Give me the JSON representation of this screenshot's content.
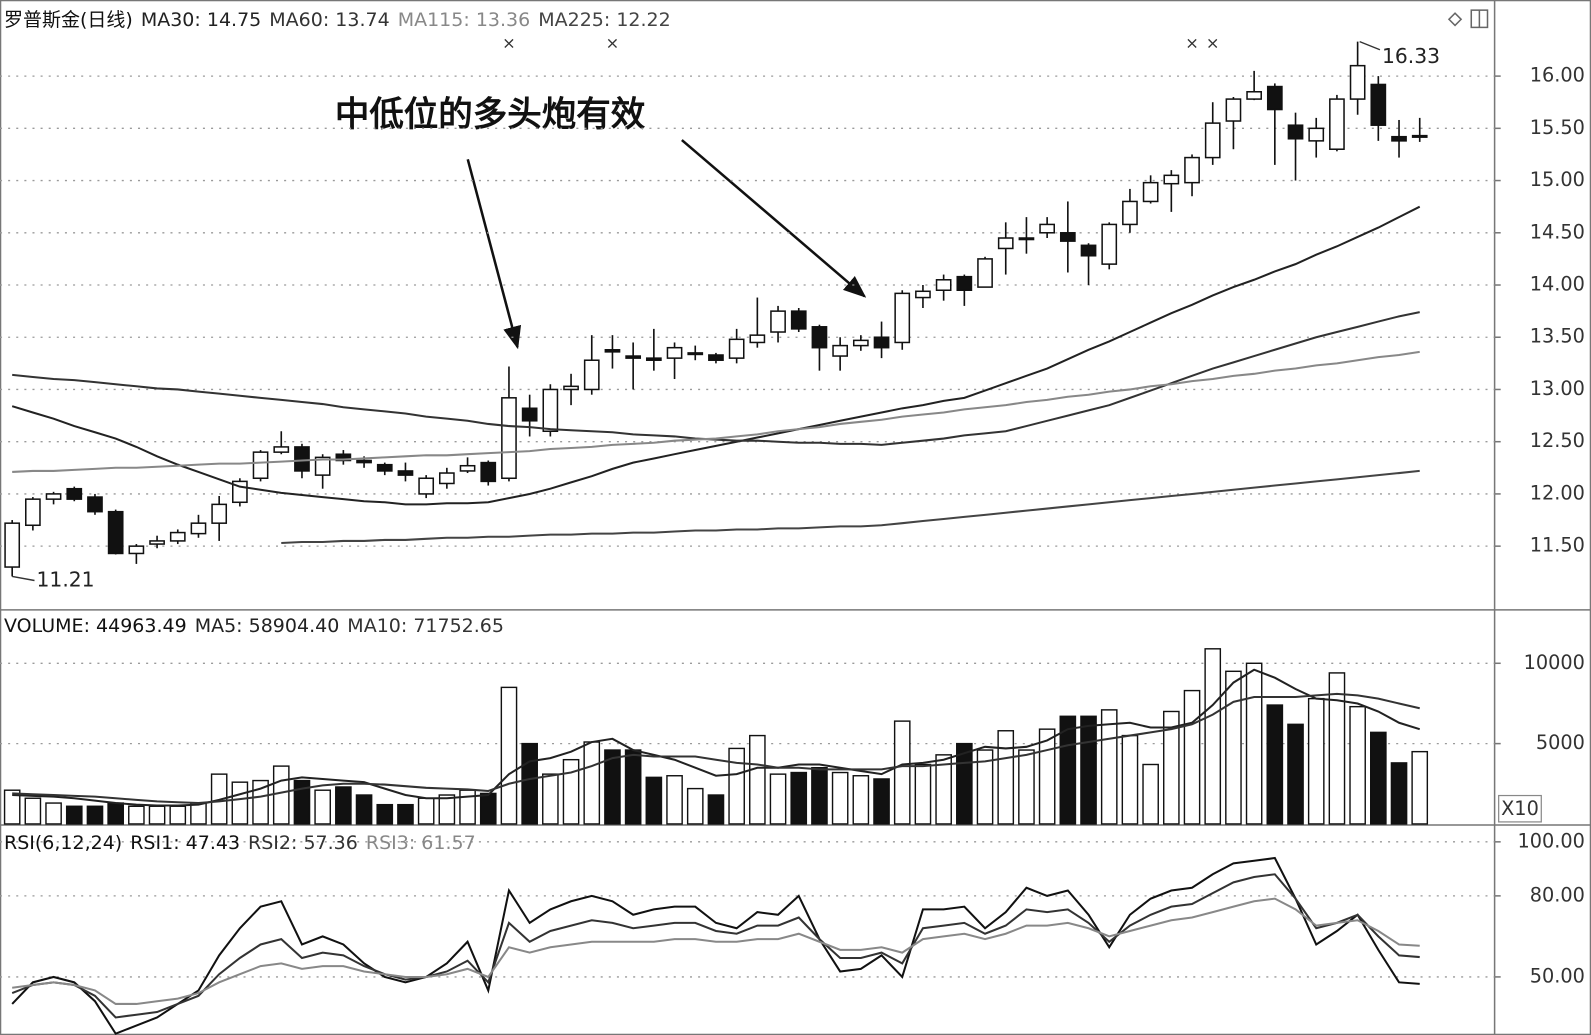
{
  "chart_data": [
    {
      "type": "candlestick",
      "title": "罗普斯金(日线)",
      "open": [
        11.3,
        11.7,
        11.95,
        12.05,
        11.97,
        11.83,
        11.43,
        11.52,
        11.55,
        11.62,
        11.72,
        11.92,
        12.15,
        12.4,
        12.45,
        12.18,
        12.38,
        12.32,
        12.28,
        12.22,
        12.0,
        12.1,
        12.22,
        12.3,
        12.15,
        12.82,
        12.6,
        13.0,
        13.0,
        13.38,
        13.32,
        13.3,
        13.3,
        13.35,
        13.33,
        13.3,
        13.45,
        13.55,
        13.75,
        13.6,
        13.32,
        13.42,
        13.5,
        13.45,
        13.88,
        13.95,
        14.08,
        13.98,
        14.35,
        14.45,
        14.5,
        14.5,
        14.38,
        14.2,
        14.58,
        14.8,
        14.97,
        14.98,
        15.22,
        15.57,
        15.78,
        15.9,
        15.53,
        15.38,
        15.3,
        15.78,
        15.92,
        15.42,
        15.43
      ],
      "high": [
        11.75,
        11.97,
        12.02,
        12.07,
        12.0,
        11.85,
        11.52,
        11.6,
        11.66,
        11.8,
        11.98,
        12.15,
        12.42,
        12.6,
        12.48,
        12.38,
        12.42,
        12.36,
        12.3,
        12.3,
        12.18,
        12.25,
        12.35,
        12.32,
        13.22,
        12.95,
        13.05,
        13.15,
        13.52,
        13.52,
        13.45,
        13.58,
        13.45,
        13.42,
        13.35,
        13.58,
        13.88,
        13.8,
        13.78,
        13.62,
        13.5,
        13.52,
        13.65,
        13.95,
        14.0,
        14.1,
        14.1,
        14.27,
        14.6,
        14.65,
        14.65,
        14.8,
        14.4,
        14.6,
        14.92,
        15.05,
        15.1,
        15.25,
        15.75,
        15.8,
        16.05,
        15.93,
        15.65,
        15.6,
        15.82,
        16.33,
        16.0,
        15.58,
        15.6
      ],
      "low": [
        11.21,
        11.65,
        11.9,
        11.93,
        11.8,
        11.42,
        11.33,
        11.48,
        11.52,
        11.58,
        11.55,
        11.88,
        12.12,
        12.38,
        12.15,
        12.05,
        12.28,
        12.25,
        12.18,
        12.12,
        11.96,
        12.05,
        12.2,
        12.08,
        12.12,
        12.55,
        12.55,
        12.85,
        12.95,
        13.2,
        13.0,
        13.18,
        13.1,
        13.28,
        13.25,
        13.25,
        13.4,
        13.45,
        13.55,
        13.18,
        13.18,
        13.37,
        13.3,
        13.38,
        13.78,
        13.85,
        13.8,
        13.98,
        14.1,
        14.3,
        14.45,
        14.12,
        14.0,
        14.15,
        14.5,
        14.78,
        14.7,
        14.85,
        15.15,
        15.3,
        15.77,
        15.15,
        15.0,
        15.22,
        15.28,
        15.63,
        15.38,
        15.22,
        15.37
      ],
      "close": [
        11.72,
        11.95,
        12.0,
        11.95,
        11.83,
        11.43,
        11.5,
        11.55,
        11.63,
        11.72,
        11.9,
        12.12,
        12.4,
        12.45,
        12.22,
        12.35,
        12.32,
        12.3,
        12.22,
        12.18,
        12.15,
        12.2,
        12.27,
        12.12,
        12.92,
        12.7,
        13.0,
        13.03,
        13.28,
        13.36,
        13.3,
        13.28,
        13.4,
        13.35,
        13.28,
        13.48,
        13.52,
        13.75,
        13.58,
        13.4,
        13.42,
        13.47,
        13.4,
        13.92,
        13.94,
        14.05,
        13.95,
        14.25,
        14.45,
        14.45,
        14.58,
        14.42,
        14.28,
        14.58,
        14.8,
        14.98,
        15.05,
        15.22,
        15.55,
        15.78,
        15.85,
        15.68,
        15.4,
        15.5,
        15.78,
        16.1,
        15.53,
        15.38,
        15.43
      ],
      "series": [
        {
          "name": "MA30",
          "readout": 14.75,
          "color": "#222222",
          "values": [
            12.84,
            12.78,
            12.72,
            12.65,
            12.59,
            12.53,
            12.45,
            12.36,
            12.28,
            12.21,
            12.14,
            12.07,
            12.04,
            12.01,
            11.99,
            11.97,
            11.95,
            11.93,
            11.92,
            11.9,
            11.9,
            11.91,
            11.91,
            11.92,
            11.96,
            12.0,
            12.05,
            12.11,
            12.17,
            12.24,
            12.3,
            12.34,
            12.38,
            12.42,
            12.46,
            12.5,
            12.54,
            12.58,
            12.62,
            12.66,
            12.7,
            12.74,
            12.78,
            12.82,
            12.85,
            12.89,
            12.92,
            12.99,
            13.06,
            13.13,
            13.2,
            13.29,
            13.38,
            13.46,
            13.55,
            13.64,
            13.73,
            13.81,
            13.9,
            13.98,
            14.05,
            14.13,
            14.2,
            14.29,
            14.37,
            14.46,
            14.55,
            14.65,
            14.75
          ]
        },
        {
          "name": "MA60",
          "readout": 13.74,
          "color": "#333333",
          "values": [
            13.14,
            13.12,
            13.1,
            13.09,
            13.07,
            13.05,
            13.03,
            13.01,
            13.0,
            12.98,
            12.96,
            12.94,
            12.92,
            12.9,
            12.88,
            12.86,
            12.83,
            12.81,
            12.79,
            12.77,
            12.74,
            12.72,
            12.7,
            12.67,
            12.65,
            12.64,
            12.62,
            12.61,
            12.6,
            12.59,
            12.57,
            12.56,
            12.55,
            12.53,
            12.52,
            12.51,
            12.51,
            12.5,
            12.49,
            12.49,
            12.48,
            12.48,
            12.47,
            12.49,
            12.51,
            12.53,
            12.56,
            12.58,
            12.6,
            12.65,
            12.7,
            12.75,
            12.8,
            12.85,
            12.92,
            12.99,
            13.06,
            13.13,
            13.2,
            13.26,
            13.32,
            13.38,
            13.44,
            13.5,
            13.55,
            13.6,
            13.65,
            13.7,
            13.74
          ]
        },
        {
          "name": "MA115",
          "readout": 13.36,
          "color": "#888888",
          "values": [
            12.21,
            12.22,
            12.22,
            12.23,
            12.24,
            12.25,
            12.25,
            12.26,
            12.27,
            12.28,
            12.29,
            12.29,
            12.3,
            12.31,
            12.32,
            12.33,
            12.33,
            12.34,
            12.35,
            12.36,
            12.37,
            12.37,
            12.38,
            12.39,
            12.4,
            12.41,
            12.43,
            12.44,
            12.45,
            12.47,
            12.48,
            12.49,
            12.51,
            12.52,
            12.53,
            12.55,
            12.57,
            12.6,
            12.62,
            12.64,
            12.67,
            12.69,
            12.71,
            12.74,
            12.76,
            12.78,
            12.81,
            12.83,
            12.85,
            12.88,
            12.9,
            12.93,
            12.95,
            12.98,
            13.0,
            13.03,
            13.05,
            13.08,
            13.1,
            13.13,
            13.15,
            13.18,
            13.2,
            13.23,
            13.25,
            13.28,
            13.31,
            13.33,
            13.36
          ]
        },
        {
          "name": "MA225",
          "readout": 12.22,
          "color": "#444444",
          "values": [
            null,
            null,
            null,
            null,
            null,
            null,
            null,
            null,
            null,
            null,
            null,
            null,
            null,
            11.53,
            11.54,
            11.54,
            11.55,
            11.55,
            11.56,
            11.56,
            11.57,
            11.58,
            11.58,
            11.59,
            11.59,
            11.6,
            11.61,
            11.61,
            11.62,
            11.62,
            11.63,
            11.63,
            11.64,
            11.65,
            11.65,
            11.66,
            11.66,
            11.67,
            11.67,
            11.68,
            11.69,
            11.69,
            11.7,
            11.72,
            11.74,
            11.76,
            11.78,
            11.8,
            11.82,
            11.84,
            11.86,
            11.88,
            11.9,
            11.92,
            11.94,
            11.96,
            11.98,
            12.0,
            12.02,
            12.04,
            12.06,
            12.08,
            12.1,
            12.12,
            12.14,
            12.16,
            12.18,
            12.2,
            12.22
          ]
        }
      ],
      "ylim": [
        10.9,
        16.68
      ],
      "yticks": [
        {
          "value": 11.5,
          "label": "11.50"
        },
        {
          "value": 12,
          "label": "12.00"
        },
        {
          "value": 12.5,
          "label": "12.50"
        },
        {
          "value": 13,
          "label": "13.00"
        },
        {
          "value": 13.5,
          "label": "13.50"
        },
        {
          "value": 14,
          "label": "14.00"
        },
        {
          "value": 14.5,
          "label": "14.50"
        },
        {
          "value": 15,
          "label": "15.00"
        },
        {
          "value": 15.5,
          "label": "15.50"
        },
        {
          "value": 16,
          "label": "16.00"
        }
      ],
      "grid": true,
      "annotation": "中低位的多头炮有效",
      "high_label": {
        "index": 65,
        "value": 16.33
      },
      "low_label": {
        "index": 0,
        "value": 11.21
      },
      "markers": [
        {
          "index": 24,
          "label": "×"
        },
        {
          "index": 29,
          "label": "×"
        },
        {
          "index": 57,
          "label": "×"
        },
        {
          "index": 58,
          "label": "×"
        }
      ]
    },
    {
      "type": "bar",
      "title": "VOLUME",
      "readout": 44963.49,
      "unit_label": "X10",
      "values": [
        2100,
        1600,
        1300,
        1100,
        1100,
        1300,
        1100,
        1100,
        1100,
        1300,
        3100,
        2600,
        2700,
        3600,
        2700,
        2100,
        2300,
        1800,
        1200,
        1200,
        1600,
        1800,
        2100,
        1900,
        8500,
        5000,
        3100,
        4000,
        5100,
        4600,
        4600,
        2900,
        3000,
        2200,
        1800,
        4700,
        5500,
        3100,
        3200,
        3500,
        3200,
        3000,
        2800,
        6400,
        3700,
        4300,
        5000,
        4600,
        5800,
        4600,
        5900,
        6700,
        6700,
        7100,
        5500,
        3700,
        7000,
        8300,
        10900,
        9500,
        10000,
        7400,
        6200,
        7800,
        9400,
        7300,
        5700,
        3800,
        4500
      ],
      "series": [
        {
          "name": "MA5",
          "readout": {
            "value": 58904.4,
            "label": "58904.40"
          },
          "color": "#222222",
          "values": [
            1800,
            1750,
            1700,
            1600,
            1450,
            1300,
            1200,
            1150,
            1150,
            1200,
            1500,
            1850,
            2200,
            2700,
            2900,
            2800,
            2700,
            2600,
            2200,
            1800,
            1600,
            1600,
            1700,
            1800,
            3100,
            3900,
            4100,
            4500,
            5100,
            5300,
            4600,
            4300,
            4000,
            3500,
            3000,
            3100,
            3500,
            3500,
            3700,
            3700,
            3500,
            3300,
            3100,
            3700,
            3800,
            4000,
            4400,
            4800,
            4700,
            4800,
            5200,
            5900,
            6100,
            6200,
            6300,
            6000,
            6000,
            6300,
            7400,
            8800,
            9600,
            9100,
            8400,
            7800,
            7700,
            7500,
            7000,
            6300,
            5900
          ]
        },
        {
          "name": "MA10",
          "readout": 71752.65,
          "color": "#333333",
          "values": [
            1900,
            1850,
            1800,
            1750,
            1700,
            1600,
            1500,
            1400,
            1350,
            1300,
            1400,
            1550,
            1700,
            1950,
            2200,
            2400,
            2500,
            2500,
            2450,
            2350,
            2250,
            2200,
            2150,
            2050,
            2500,
            2800,
            3000,
            3200,
            3600,
            4100,
            4300,
            4200,
            4200,
            4200,
            4000,
            3800,
            3700,
            3500,
            3500,
            3400,
            3400,
            3400,
            3400,
            3600,
            3600,
            3700,
            3800,
            3900,
            4100,
            4300,
            4600,
            4900,
            5100,
            5300,
            5500,
            5700,
            5900,
            6200,
            6800,
            7600,
            7900,
            7900,
            7900,
            8000,
            8100,
            8000,
            7800,
            7500,
            7200
          ]
        }
      ],
      "ylim": [
        0,
        13200
      ],
      "yticks": [
        5000,
        10000
      ],
      "grid": true
    },
    {
      "type": "line",
      "title": "RSI(6,12,24)",
      "series": [
        {
          "name": "RSI1",
          "readout": 47.43,
          "color": "#111111",
          "values": [
            40,
            48,
            50,
            48,
            41,
            29,
            32,
            35,
            40,
            45,
            58,
            68,
            76,
            78,
            62,
            65,
            62,
            55,
            50,
            48,
            50,
            55,
            63,
            45,
            82,
            70,
            75,
            78,
            80,
            78,
            73,
            75,
            76,
            76,
            70,
            68,
            74,
            73,
            80,
            64,
            52,
            53,
            58,
            50,
            75,
            75,
            76,
            68,
            74,
            83,
            80,
            82,
            73,
            61,
            73,
            79,
            82,
            83,
            88,
            92,
            93,
            94,
            79,
            62,
            67,
            73,
            60,
            48,
            47.43
          ]
        },
        {
          "name": "RSI2",
          "readout": 57.36,
          "color": "#333333",
          "values": [
            44,
            47,
            48,
            47,
            43,
            35,
            36,
            37,
            40,
            43,
            51,
            57,
            62,
            64,
            57,
            59,
            58,
            54,
            51,
            49,
            50,
            52,
            56,
            48,
            70,
            63,
            67,
            69,
            71,
            70,
            68,
            69,
            70,
            70,
            67,
            66,
            69,
            69,
            72,
            64,
            57,
            57,
            59,
            55,
            68,
            69,
            70,
            66,
            69,
            75,
            74,
            75,
            70,
            63,
            69,
            73,
            76,
            77,
            81,
            85,
            87,
            88,
            79,
            68,
            70,
            73,
            65,
            58,
            57.36
          ]
        },
        {
          "name": "RSI3",
          "readout": 61.57,
          "color": "#888888",
          "values": [
            46,
            47,
            48,
            47,
            45,
            40,
            40,
            41,
            42,
            44,
            48,
            51,
            54,
            55,
            53,
            54,
            54,
            52,
            51,
            50,
            50,
            51,
            53,
            50,
            61,
            59,
            61,
            62,
            63,
            63,
            63,
            63,
            64,
            64,
            63,
            63,
            64,
            64,
            66,
            63,
            60,
            60,
            61,
            59,
            64,
            65,
            66,
            64,
            66,
            69,
            69,
            70,
            68,
            65,
            67,
            69,
            71,
            72,
            74,
            76,
            78,
            79,
            75,
            69,
            70,
            71,
            67,
            62,
            61.57
          ]
        }
      ],
      "ylim": [
        28.5,
        105.5
      ],
      "yticks": [
        {
          "value": 50,
          "label": "50.00"
        },
        {
          "value": 80,
          "label": "80.00"
        },
        {
          "value": 100,
          "label": "100.00"
        }
      ],
      "grid": true
    }
  ]
}
